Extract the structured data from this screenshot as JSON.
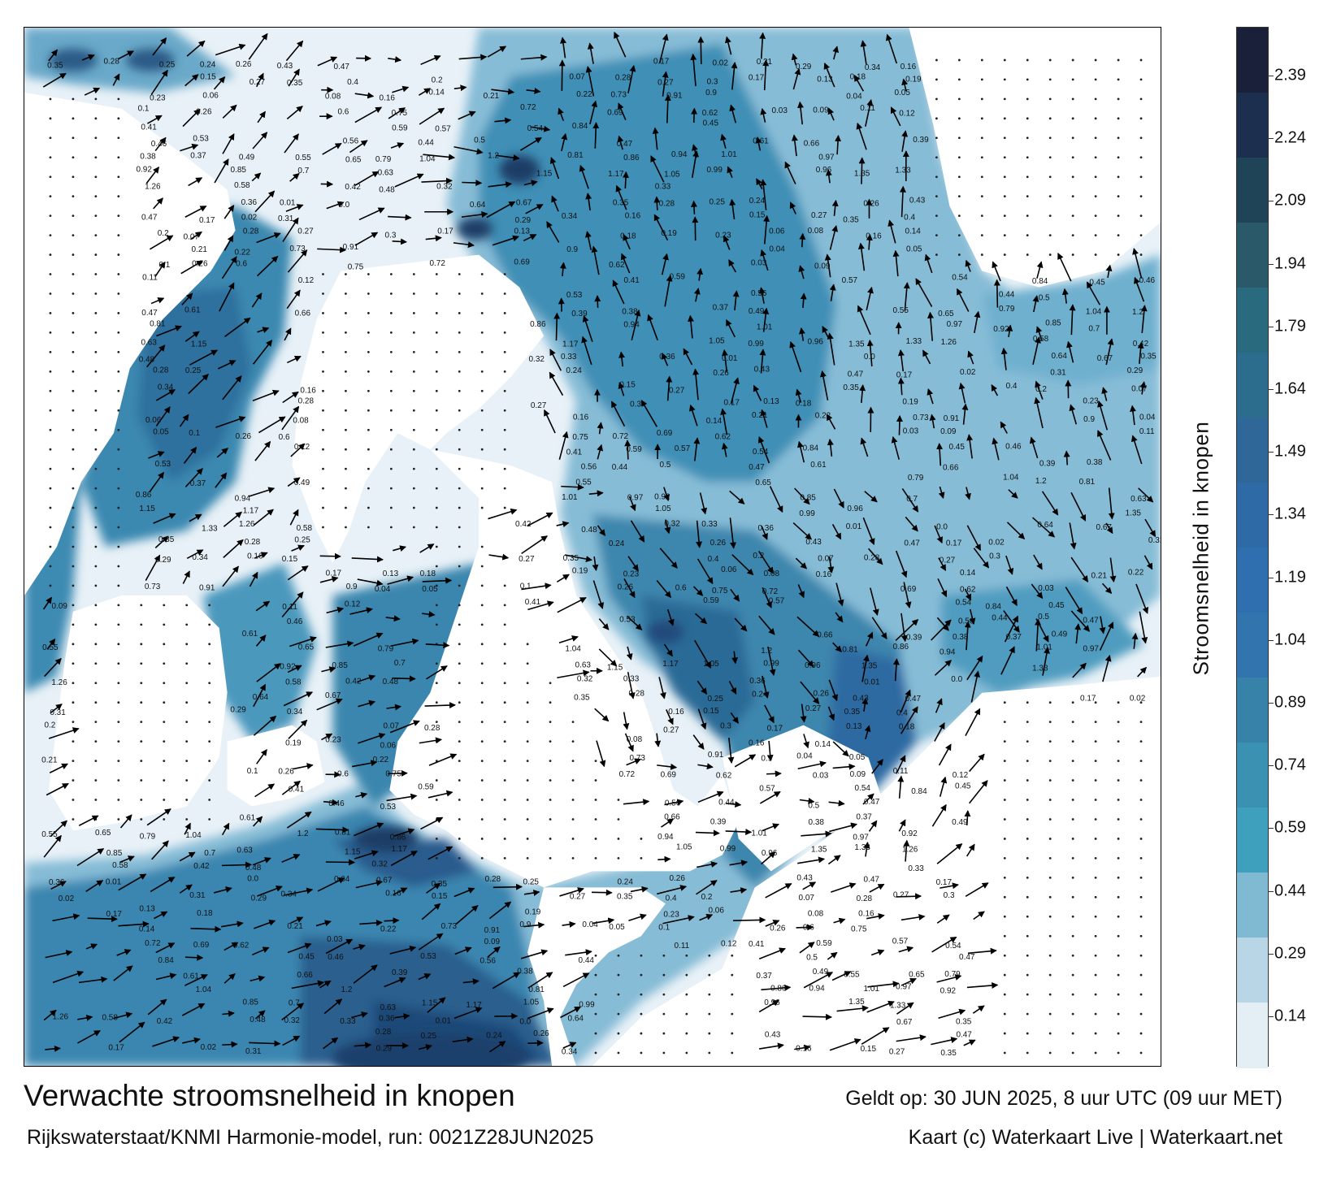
{
  "map": {
    "title": "Verwachte stroomsnelheid in knopen",
    "subtitle": "Rijkswaterstaat/KNMI Harmonie-model, run: 0021Z28JUN2025",
    "valid_time": "Geldt op: 30 JUN 2025, 8 uur UTC (09 uur MET)",
    "credit": "Kaart (c) Waterkaart Live | Waterkaart.net",
    "land_color": "#ffffff",
    "arrow_color": "#000000"
  },
  "colorbar": {
    "label": "Stroomsnelheid in knopen",
    "ticks": [
      "2.39",
      "2.24",
      "2.09",
      "1.94",
      "1.79",
      "1.64",
      "1.49",
      "1.34",
      "1.19",
      "1.04",
      "0.89",
      "0.74",
      "0.59",
      "0.44",
      "0.29",
      "0.14"
    ],
    "colors": [
      "#1a1f3a",
      "#1c2f4f",
      "#1f4457",
      "#2a5a6a",
      "#2a6a7e",
      "#2c6c8c",
      "#2e6798",
      "#2e6aa6",
      "#2f6fb0",
      "#3274ae",
      "#3682a8",
      "#3b91b2",
      "#3fa0bd",
      "#7fb9d2",
      "#b8d6e6",
      "#e4eef5"
    ]
  },
  "speed_labels": [
    "0.35",
    "0.28",
    "0.25",
    "0.24",
    "0.26",
    "0.43",
    "0.47",
    "0.17",
    "0.02",
    "0.31",
    "0.29",
    "0.34",
    "0.16",
    "0.15",
    "0.27",
    "0.35",
    "0.4",
    "0.2",
    "0.07",
    "0.28",
    "0.27",
    "0.3",
    "0.17",
    "0.13",
    "0.18",
    "0.19",
    "0.23",
    "0.06",
    "0.08",
    "0.16",
    "0.14",
    "0.21",
    "0.22",
    "0.73",
    "0.91",
    "0.9",
    "0.04",
    "0.05",
    "0.1",
    "0.26",
    "0.6",
    "0.75",
    "0.72",
    "0.69",
    "0.62",
    "0.03",
    "0.09",
    "0.11",
    "0.12",
    "0.41",
    "0.59",
    "0.57",
    "0.54",
    "0.84",
    "0.45",
    "0.46",
    "0.53",
    "0.56",
    "0.44",
    "0.5",
    "0.47",
    "0.61",
    "0.66",
    "0.39",
    "0.38",
    "0.37",
    "0.49",
    "0.55",
    "0.65",
    "0.79",
    "1.04",
    "1.2",
    "0.81",
    "0.86",
    "0.94",
    "1.01",
    "0.97",
    "0.92",
    "0.85",
    "0.7",
    "0.63",
    "1.15",
    "1.17",
    "1.05",
    "0.99",
    "0.96",
    "1.35",
    "1.33",
    "1.26",
    "0.58",
    "0.42",
    "0.48",
    "0.32",
    "0.33",
    "0.36",
    "0.01",
    "0.0",
    "0.64",
    "0.67"
  ]
}
